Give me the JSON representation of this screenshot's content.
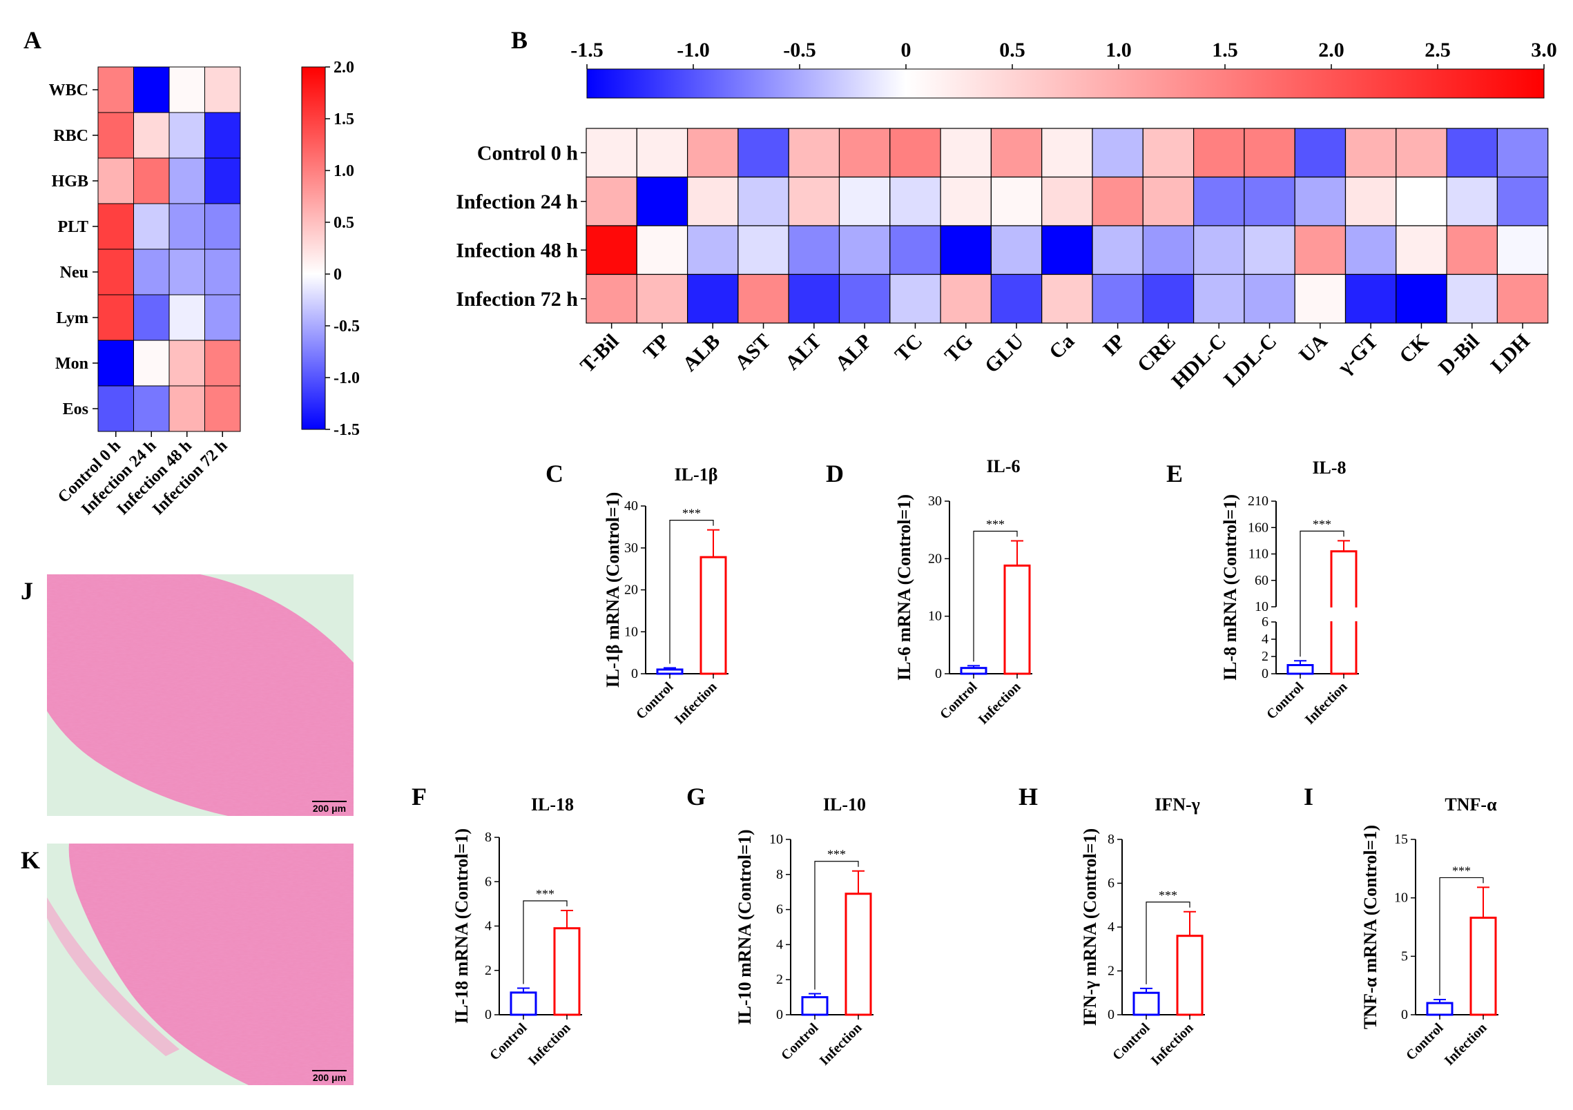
{
  "panels": {
    "A": "A",
    "B": "B",
    "C": "C",
    "D": "D",
    "E": "E",
    "F": "F",
    "G": "G",
    "H": "H",
    "I": "I",
    "J": "J",
    "K": "K"
  },
  "colors": {
    "negative": "#0000ff",
    "neutral": "#ffffff",
    "positive": "#ff0000",
    "control_bar": "#0000ff",
    "infection_bar": "#ff0000",
    "tissue_pink": "#f08cbc",
    "tissue_bg": "#dcefe0"
  },
  "histology": {
    "J": {
      "scale_label": "200 μm"
    },
    "K": {
      "scale_label": "200 μm"
    }
  },
  "chart_data": [
    {
      "id": "A",
      "type": "heatmap",
      "rows": [
        "WBC",
        "RBC",
        "HGB",
        "PLT",
        "Neu",
        "Lym",
        "Mon",
        "Eos"
      ],
      "columns": [
        "Control 0 h",
        "Infection 24 h",
        "Infection 48 h",
        "Infection 72 h"
      ],
      "values": [
        [
          1.0,
          -1.5,
          0.05,
          0.3
        ],
        [
          1.2,
          0.3,
          -0.3,
          -1.3
        ],
        [
          0.6,
          1.1,
          -0.5,
          -1.3
        ],
        [
          1.5,
          -0.3,
          -0.6,
          -0.7
        ],
        [
          1.5,
          -0.6,
          -0.5,
          -0.6
        ],
        [
          1.5,
          -0.9,
          -0.1,
          -0.6
        ],
        [
          -1.5,
          0.05,
          0.5,
          1.0
        ],
        [
          -1.0,
          -0.8,
          0.6,
          1.0
        ]
      ],
      "colorbar": {
        "min": -1.5,
        "max": 2.0,
        "ticks": [
          "2.0",
          "1.5",
          "1.0",
          "0.5",
          "0",
          "-0.5",
          "-1.0",
          "-1.5"
        ]
      }
    },
    {
      "id": "B",
      "type": "heatmap",
      "rows": [
        "Control 0 h",
        "Infection 24 h",
        "Infection 48 h",
        "Infection 72 h"
      ],
      "columns": [
        "T-Bil",
        "TP",
        "ALB",
        "AST",
        "ALT",
        "ALP",
        "TC",
        "TG",
        "GLU",
        "Ca",
        "IP",
        "CRE",
        "HDL-C",
        "LDL-C",
        "UA",
        "γ-GT",
        "CK",
        "D-Bil",
        "LDH"
      ],
      "values": [
        [
          0.2,
          0.2,
          1.0,
          -1.0,
          0.8,
          1.3,
          1.5,
          0.2,
          1.2,
          0.2,
          -0.4,
          0.7,
          1.5,
          1.5,
          -1.0,
          0.9,
          0.9,
          -1.0,
          -0.7
        ],
        [
          0.9,
          -1.5,
          0.3,
          -0.3,
          0.6,
          -0.1,
          -0.2,
          0.2,
          0.1,
          0.4,
          1.3,
          0.8,
          -0.8,
          -0.8,
          -0.5,
          0.3,
          0.0,
          -0.2,
          -0.8
        ],
        [
          2.9,
          0.1,
          -0.4,
          -0.2,
          -0.7,
          -0.5,
          -0.8,
          -1.5,
          -0.4,
          -1.5,
          -0.4,
          -0.6,
          -0.4,
          -0.3,
          1.2,
          -0.5,
          0.2,
          1.3,
          -0.05
        ],
        [
          1.2,
          0.8,
          -1.3,
          1.4,
          -1.2,
          -0.9,
          -0.3,
          0.8,
          -1.1,
          0.6,
          -0.8,
          -1.1,
          -0.4,
          -0.5,
          0.1,
          -1.3,
          -1.5,
          -0.2,
          1.3
        ]
      ],
      "colorbar": {
        "min": -1.5,
        "max": 3.0,
        "ticks": [
          "-1.5",
          "-1.0",
          "-0.5",
          "0",
          "0.5",
          "1.0",
          "1.5",
          "2.0",
          "2.5",
          "3.0"
        ]
      }
    },
    {
      "id": "C",
      "type": "bar",
      "title": "IL-1β",
      "ylabel": "IL-1β mRNA (Control=1)",
      "categories": [
        "Control",
        "Infection"
      ],
      "values": [
        1.0,
        27.8
      ],
      "errors": [
        0.4,
        6.5
      ],
      "ylim": [
        0,
        40
      ],
      "yticks": [
        "0",
        "10",
        "20",
        "30",
        "40"
      ],
      "significance": "***"
    },
    {
      "id": "D",
      "type": "bar",
      "title": "IL-6",
      "ylabel": "IL-6 mRNA (Control=1)",
      "categories": [
        "Control",
        "Infection"
      ],
      "values": [
        1.0,
        18.8
      ],
      "errors": [
        0.4,
        4.3
      ],
      "ylim": [
        0,
        30
      ],
      "yticks": [
        "0",
        "10",
        "20",
        "30"
      ],
      "significance": "***"
    },
    {
      "id": "E",
      "type": "bar",
      "title": "IL-8",
      "ylabel": "IL-8 mRNA (Control=1)",
      "categories": [
        "Control",
        "Infection"
      ],
      "values": [
        1.0,
        115
      ],
      "errors": [
        0.5,
        20
      ],
      "ylim": [
        0,
        210
      ],
      "axis_break": [
        6,
        10
      ],
      "yticks": [
        "0",
        "2",
        "4",
        "6",
        "10",
        "60",
        "110",
        "160",
        "210"
      ],
      "significance": "***"
    },
    {
      "id": "F",
      "type": "bar",
      "title": "IL-18",
      "ylabel": "IL-18 mRNA (Control=1)",
      "categories": [
        "Control",
        "Infection"
      ],
      "values": [
        1.0,
        3.9
      ],
      "errors": [
        0.2,
        0.8
      ],
      "ylim": [
        0,
        8
      ],
      "yticks": [
        "0",
        "2",
        "4",
        "6",
        "8"
      ],
      "significance": "***"
    },
    {
      "id": "G",
      "type": "bar",
      "title": "IL-10",
      "ylabel": "IL-10 mRNA (Control=1)",
      "categories": [
        "Control",
        "Infection"
      ],
      "values": [
        1.0,
        6.9
      ],
      "errors": [
        0.2,
        1.3
      ],
      "ylim": [
        0,
        10
      ],
      "yticks": [
        "0",
        "2",
        "4",
        "6",
        "8",
        "10"
      ],
      "significance": "***"
    },
    {
      "id": "H",
      "type": "bar",
      "title": "IFN-γ",
      "ylabel": "IFN-γ mRNA (Control=1)",
      "categories": [
        "Control",
        "Infection"
      ],
      "values": [
        1.0,
        3.6
      ],
      "errors": [
        0.2,
        1.1
      ],
      "ylim": [
        0,
        8
      ],
      "yticks": [
        "0",
        "2",
        "4",
        "6",
        "8"
      ],
      "significance": "***"
    },
    {
      "id": "I",
      "type": "bar",
      "title": "TNF-α",
      "ylabel": "TNF-α mRNA (Control=1)",
      "categories": [
        "Control",
        "Infection"
      ],
      "values": [
        1.0,
        8.3
      ],
      "errors": [
        0.3,
        2.6
      ],
      "ylim": [
        0,
        15
      ],
      "yticks": [
        "0",
        "5",
        "10",
        "15"
      ],
      "significance": "***"
    }
  ]
}
